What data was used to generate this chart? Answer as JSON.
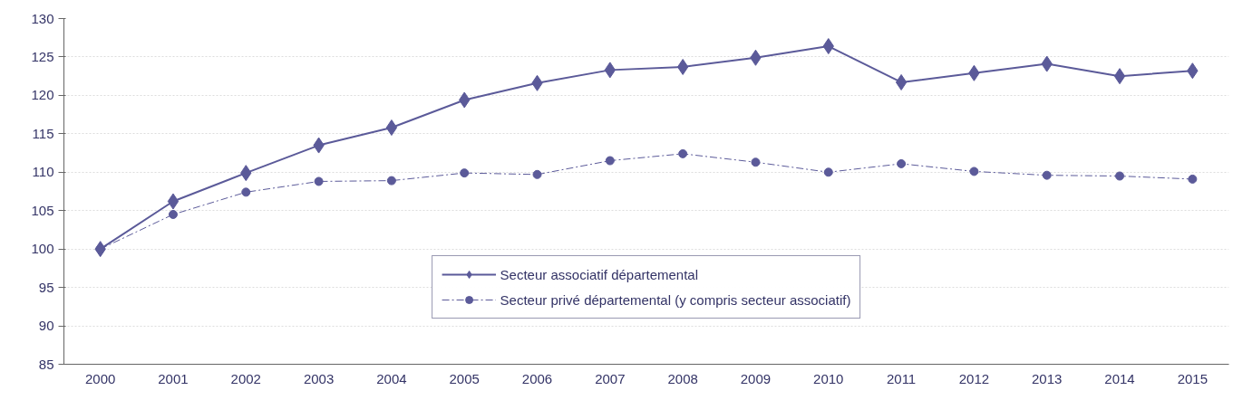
{
  "chart_data": {
    "type": "line",
    "categories": [
      "2000",
      "2001",
      "2002",
      "2003",
      "2004",
      "2005",
      "2006",
      "2007",
      "2008",
      "2009",
      "2010",
      "2011",
      "2012",
      "2013",
      "2014",
      "2015"
    ],
    "series": [
      {
        "name": "Secteur associatif départemental",
        "color": "#5b5a99",
        "marker": "diamond",
        "line_style": "solid",
        "values": [
          100,
          106.2,
          109.9,
          113.5,
          115.8,
          119.4,
          121.6,
          123.3,
          123.7,
          124.9,
          126.4,
          121.7,
          122.9,
          124.1,
          122.5,
          123.2
        ]
      },
      {
        "name": "Secteur privé départemental (y compris secteur associatif)",
        "color": "#5b5a99",
        "marker": "circle",
        "line_style": "dashed",
        "values": [
          100,
          104.5,
          107.4,
          108.8,
          108.9,
          109.9,
          109.7,
          111.5,
          112.4,
          111.3,
          110.0,
          111.1,
          110.1,
          109.6,
          109.5,
          109.1
        ]
      }
    ],
    "ylim": [
      85,
      130
    ],
    "yticks": [
      85,
      90,
      95,
      100,
      105,
      110,
      115,
      120,
      125,
      130
    ],
    "grid": "y",
    "legend": "bottom"
  }
}
